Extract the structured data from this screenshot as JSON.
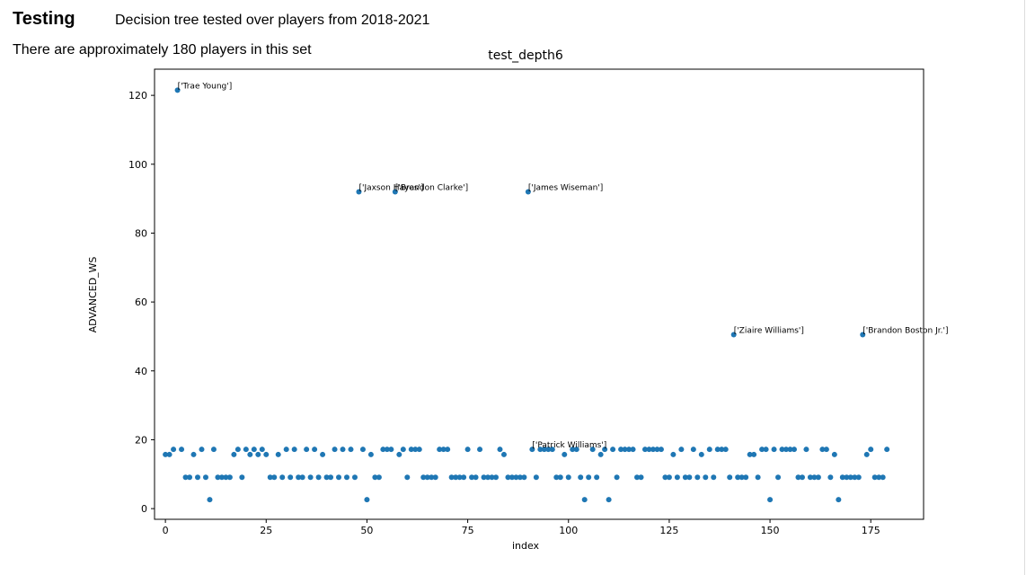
{
  "header": {
    "title": "Testing",
    "subtitle": "Decision tree tested over players from 2018-2021",
    "note": "There are approximately 180 players in this set"
  },
  "chart_data": {
    "type": "scatter",
    "title": "test_depth6",
    "x_label": "index",
    "y_label": "ADVANCED_WS",
    "color": "#1f77b4",
    "x": [
      0,
      1,
      2,
      3,
      4,
      5,
      6,
      7,
      8,
      9,
      10,
      11,
      12,
      13,
      14,
      15,
      16,
      17,
      18,
      19,
      20,
      21,
      22,
      23,
      24,
      25,
      26,
      27,
      28,
      29,
      30,
      31,
      32,
      33,
      34,
      35,
      36,
      37,
      38,
      39,
      40,
      41,
      42,
      43,
      44,
      45,
      46,
      47,
      48,
      49,
      50,
      51,
      52,
      53,
      54,
      55,
      56,
      57,
      58,
      59,
      60,
      61,
      62,
      63,
      64,
      65,
      66,
      67,
      68,
      69,
      70,
      71,
      72,
      73,
      74,
      75,
      76,
      77,
      78,
      79,
      80,
      81,
      82,
      83,
      84,
      85,
      86,
      87,
      88,
      89,
      90,
      91,
      92,
      93,
      94,
      95,
      96,
      97,
      98,
      99,
      100,
      101,
      102,
      103,
      104,
      105,
      106,
      107,
      108,
      109,
      110,
      111,
      112,
      113,
      114,
      115,
      116,
      117,
      118,
      119,
      120,
      121,
      122,
      123,
      124,
      125,
      126,
      127,
      128,
      129,
      130,
      131,
      132,
      133,
      134,
      135,
      136,
      137,
      138,
      139,
      140,
      141,
      142,
      143,
      144,
      145,
      146,
      147,
      148,
      149,
      150,
      151,
      152,
      153,
      154,
      155,
      156,
      157,
      158,
      159,
      160,
      161,
      162,
      163,
      164,
      165,
      166,
      167,
      168,
      169,
      170,
      171,
      172,
      173,
      174,
      175,
      176,
      177,
      178,
      179
    ],
    "values": [
      15.7,
      15.7,
      17.2,
      121.5,
      17.2,
      9.1,
      9.1,
      15.7,
      9.1,
      17.2,
      9.1,
      2.6,
      17.2,
      9.1,
      9.1,
      9.1,
      9.1,
      15.7,
      17.2,
      9.1,
      17.2,
      15.7,
      17.2,
      15.7,
      17.2,
      15.7,
      9.1,
      9.1,
      15.7,
      9.1,
      17.2,
      9.1,
      17.2,
      9.1,
      9.1,
      17.2,
      9.1,
      17.2,
      9.1,
      15.7,
      9.1,
      9.1,
      17.2,
      9.1,
      17.2,
      9.1,
      17.2,
      9.1,
      92,
      17.2,
      2.6,
      15.7,
      9.1,
      9.1,
      17.2,
      17.2,
      17.2,
      92,
      15.7,
      17.2,
      9.1,
      17.2,
      17.2,
      17.2,
      9.1,
      9.1,
      9.1,
      9.1,
      17.2,
      17.2,
      17.2,
      9.1,
      9.1,
      9.1,
      9.1,
      17.2,
      9.1,
      9.1,
      17.2,
      9.1,
      9.1,
      9.1,
      9.1,
      17.2,
      15.7,
      9.1,
      9.1,
      9.1,
      9.1,
      9.1,
      92,
      17.2,
      9.1,
      17.2,
      17.2,
      17.2,
      17.2,
      9.1,
      9.1,
      15.7,
      9.1,
      17.2,
      17.2,
      9.1,
      2.6,
      9.1,
      17.2,
      9.1,
      15.7,
      17.2,
      2.6,
      17.2,
      9.1,
      17.2,
      17.2,
      17.2,
      17.2,
      9.1,
      9.1,
      17.2,
      17.2,
      17.2,
      17.2,
      17.2,
      9.1,
      9.1,
      15.7,
      9.1,
      17.2,
      9.1,
      9.1,
      17.2,
      9.1,
      15.7,
      9.1,
      17.2,
      9.1,
      17.2,
      17.2,
      17.2,
      9.1,
      50.5,
      9.1,
      9.1,
      9.1,
      15.7,
      15.7,
      9.1,
      17.2,
      17.2,
      2.6,
      17.2,
      9.1,
      17.2,
      17.2,
      17.2,
      17.2,
      9.1,
      9.1,
      17.2,
      9.1,
      9.1,
      9.1,
      17.2,
      17.2,
      9.1,
      15.7,
      2.6,
      9.1,
      9.1,
      9.1,
      9.1,
      9.1,
      50.5,
      15.7,
      17.2,
      9.1,
      9.1,
      9.1,
      17.2
    ],
    "annotations": [
      {
        "text": "['Trae Young']",
        "x": 3
      },
      {
        "text": "['Jaxson Hayes']",
        "x": 48
      },
      {
        "text": "['Brandon Clarke']",
        "x": 57
      },
      {
        "text": "['James Wiseman']",
        "x": 90
      },
      {
        "text": "['Patrick Williams']",
        "x": 91
      },
      {
        "text": "['Ziaire Williams']",
        "x": 141
      },
      {
        "text": "['Brandon Boston Jr.']",
        "x": 173
      }
    ],
    "xlim": [
      -2.7,
      188.1
    ],
    "ylim": [
      -3.1,
      127.6
    ],
    "xticks": [
      0,
      25,
      50,
      75,
      100,
      125,
      150,
      175
    ],
    "yticks": [
      0,
      20,
      40,
      60,
      80,
      100,
      120
    ]
  }
}
